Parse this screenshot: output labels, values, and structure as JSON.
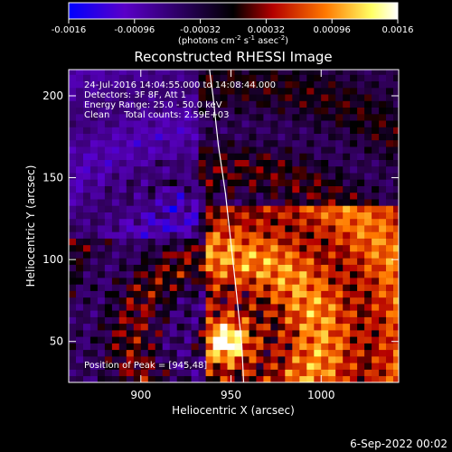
{
  "chart_data": {
    "type": "heatmap",
    "title": "Reconstructed RHESSI Image",
    "xlabel": "Heliocentric X (arcsec)",
    "ylabel": "Heliocentric Y (arcsec)",
    "xlim": [
      860,
      1043
    ],
    "ylim": [
      25,
      216
    ],
    "x_ticks": [
      900,
      950,
      1000
    ],
    "y_ticks": [
      50,
      100,
      150,
      200
    ],
    "colorbar": {
      "ticks": [
        "-0.0016",
        "-0.00096",
        "-0.00032",
        "0.00032",
        "0.00096",
        "0.0016"
      ],
      "unit_base": "(photons cm",
      "unit_exp1": "-2",
      "unit_mid": " s",
      "unit_exp2": "-1",
      "unit_mid2": " asec",
      "unit_exp3": "-2",
      "unit_end": ")",
      "range": [
        -0.0016,
        0.0016
      ],
      "colormap": [
        "#0000ff",
        "#5a00c8",
        "#000000",
        "#b40000",
        "#ff7800",
        "#ffff64",
        "#ffffff"
      ]
    },
    "annotations": [
      "24-Jul-2016 14:04:55.000 to 14:08:44.000",
      "Detectors: 3F 8F, Att 1",
      "Energy Range: 25.0 - 50.0 keV",
      "Clean     Total counts: 2.59E+03"
    ],
    "peak_label": "Position of Peak = [945,48]",
    "peak": {
      "x": 945,
      "y": 48
    },
    "limb_curve": [
      [
        937,
        225
      ],
      [
        940,
        200
      ],
      [
        943,
        170
      ],
      [
        947,
        140
      ],
      [
        950,
        110
      ],
      [
        953,
        80
      ],
      [
        956,
        48
      ],
      [
        957,
        25
      ]
    ],
    "grid": false
  },
  "footer": {
    "date": "6-Sep-2022 00:02"
  }
}
